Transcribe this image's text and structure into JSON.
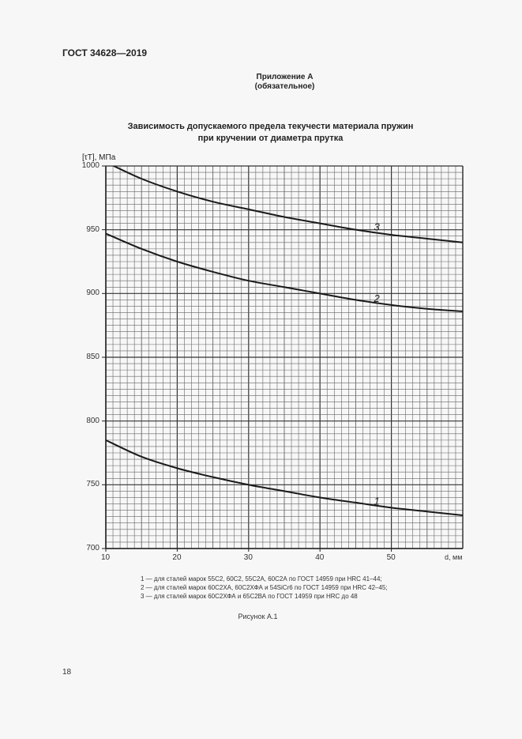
{
  "header": {
    "doc_code": "ГОСТ 34628—2019"
  },
  "appendix": {
    "title": "Приложение А",
    "subtitle": "(обязательное)"
  },
  "chart_data": {
    "type": "line",
    "title": "Зависимость допускаемого предела текучести материала пружин при кручении от диаметра прутка",
    "title_lines": [
      "Зависимость допускаемого предела текучести материала пружин",
      "при кручении от диаметра прутка"
    ],
    "xlabel": "d, мм",
    "ylabel": "[τТ], МПа",
    "xlim": [
      10,
      60
    ],
    "ylim": [
      700,
      1000
    ],
    "x_ticks": [
      10,
      20,
      30,
      40,
      50
    ],
    "y_ticks": [
      700,
      750,
      800,
      850,
      900,
      950,
      1000
    ],
    "grid": true,
    "x": [
      10,
      15,
      20,
      25,
      30,
      35,
      40,
      45,
      50,
      55,
      60
    ],
    "series": [
      {
        "name": "1",
        "values": [
          785,
          772,
          763,
          756,
          750,
          745,
          740,
          736,
          732,
          729,
          726
        ]
      },
      {
        "name": "2",
        "values": [
          947,
          935,
          925,
          917,
          910,
          905,
          900,
          895,
          891,
          888,
          886
        ]
      },
      {
        "name": "3",
        "values": [
          1003,
          990,
          980,
          972,
          966,
          960,
          955,
          950,
          946,
          943,
          940
        ]
      }
    ],
    "curve_labels": [
      {
        "text": "1",
        "x": 48,
        "y": 737
      },
      {
        "text": "2",
        "x": 48,
        "y": 896
      },
      {
        "text": "3",
        "x": 48,
        "y": 952
      }
    ],
    "legend": [
      "1 — для сталей марок 55С2, 60С2, 55С2А, 60С2А по ГОСТ 14959 при HRC 41–44;",
      "2 — для сталей марок 60С2ХА, 60С2ХФА и 54SiCr6 по ГОСТ 14959 при HRC 42–45;",
      "3 — для сталей марок 60С2ХФА и 65С2ВА по ГОСТ 14959 при HRC до 48"
    ]
  },
  "caption": "Рисунок А.1",
  "page_number": "18"
}
